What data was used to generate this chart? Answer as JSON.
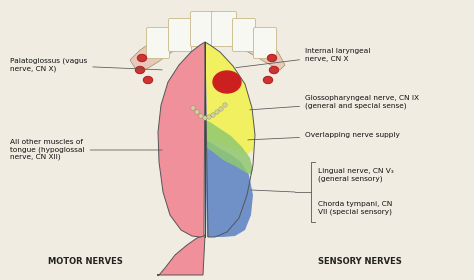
{
  "bg_color": "#f0ece2",
  "tongue_left_color": "#f0909a",
  "yellow_color": "#f0f060",
  "blue_color": "#7090c8",
  "green_color": "#90c870",
  "red_spot_color": "#cc2020",
  "gum_color": "#e8c8b8",
  "teeth_color": "#f8f8f2",
  "teeth_outline": "#c8b888",
  "tongue_outline": "#555555",
  "title_left": "MOTOR NERVES",
  "title_right": "SENSORY NERVES",
  "lbl_palatoglossus": "Palatoglossus (vagus\nnerve, CN X)",
  "lbl_all_other": "All other muscles of\ntongue (hypoglossal\nnerve, CN XII)",
  "lbl_internal": "Internal laryngeal\nnerve, CN X",
  "lbl_glosso": "Glossopharyngeal nerve, CN IX\n(general and special sense)",
  "lbl_overlap": "Overlapping nerve supply",
  "lbl_lingual": "Lingual nerve, CN V₃\n(general sensory)",
  "lbl_chorda": "Chorda tympani, CN\nVII (special sensory)"
}
